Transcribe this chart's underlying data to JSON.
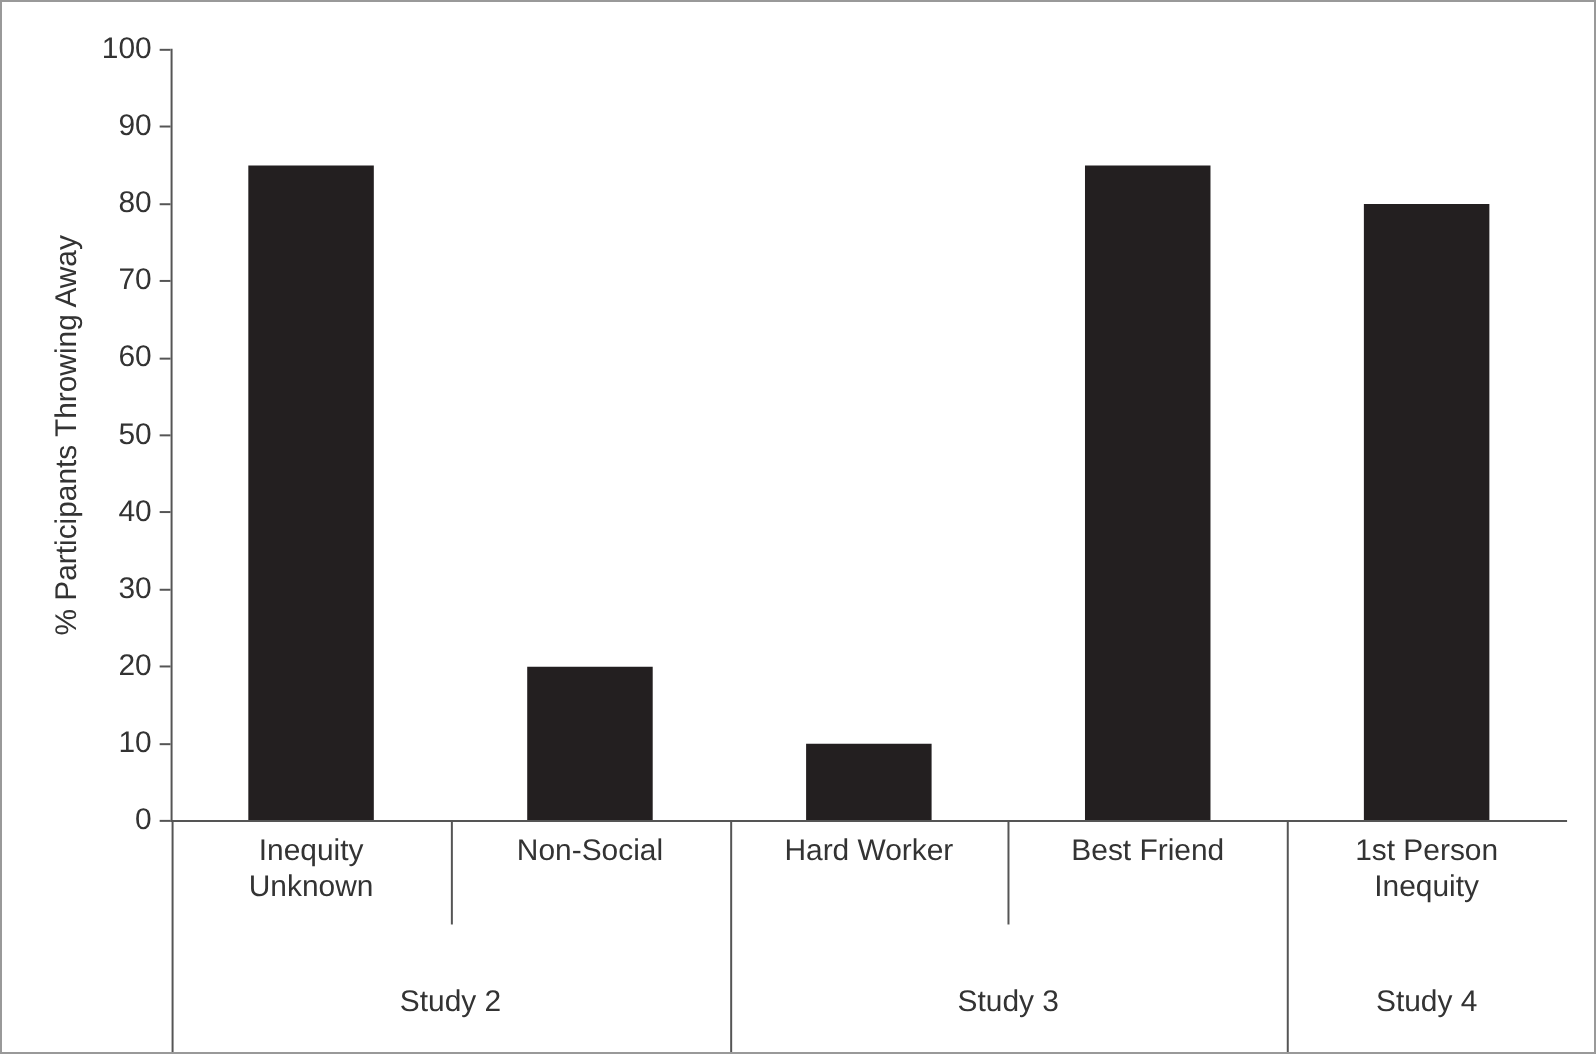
{
  "chart_data": {
    "type": "bar",
    "ylabel": "% Participants Throwing Away",
    "categories": [
      "Inequity Unknown",
      "Non-Social",
      "Hard Worker",
      "Best Friend",
      "1st Person Inequity"
    ],
    "values": [
      85,
      20,
      10,
      85,
      80
    ],
    "color": "#231f20",
    "ylim": [
      0,
      100
    ],
    "yticks": [
      0,
      10,
      20,
      30,
      40,
      50,
      60,
      70,
      80,
      90,
      100
    ],
    "grid": false,
    "legend": false,
    "annotations": [
      "Study 2",
      "Study 3",
      "Study 4"
    ]
  }
}
